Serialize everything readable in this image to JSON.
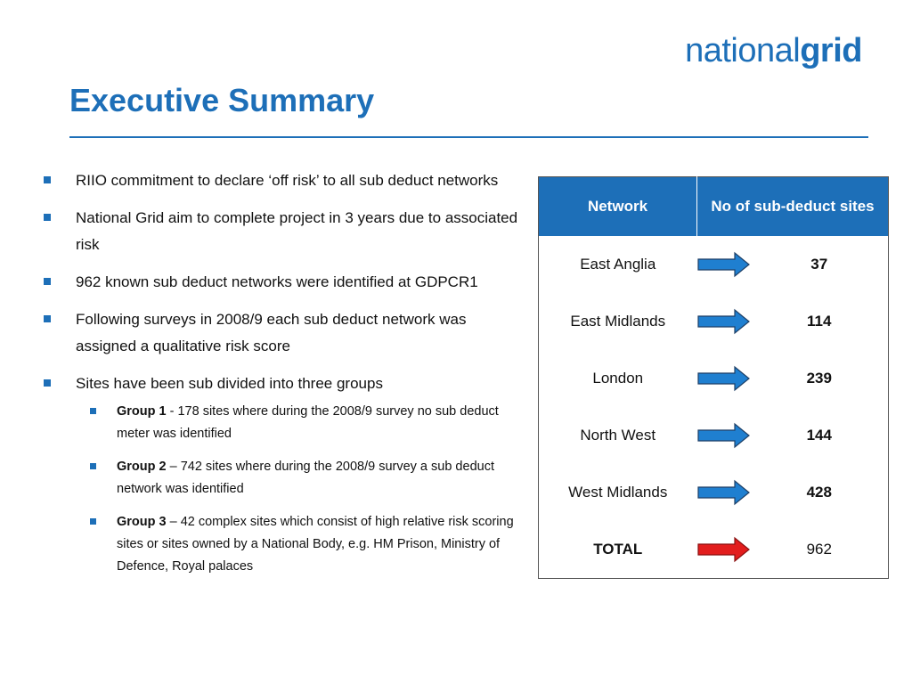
{
  "logo": {
    "light": "national",
    "bold": "grid"
  },
  "title": "Executive Summary",
  "bullets": [
    "RIIO commitment to declare ‘off risk’ to all sub deduct networks",
    "National Grid aim to complete project in 3 years due to associated risk",
    "962 known sub deduct networks were identified at GDPCR1",
    "Following surveys in 2008/9 each sub deduct network was assigned a qualitative risk score",
    "Sites have been sub divided into three groups"
  ],
  "groups": [
    {
      "label": "Group 1",
      "text": " - 178 sites where during the 2008/9 survey no sub deduct meter was identified"
    },
    {
      "label": "Group 2",
      "text": " – 742 sites where during the 2008/9 survey a sub deduct network was identified"
    },
    {
      "label": "Group 3",
      "text": " – 42 complex sites which consist of high relative risk scoring sites or sites owned by a National Body, e.g. HM Prison, Ministry of Defence, Royal palaces"
    }
  ],
  "table": {
    "headers": [
      "Network",
      "No of sub-deduct sites"
    ],
    "rows": [
      {
        "network": "East Anglia",
        "count": "37",
        "arrow": "blue"
      },
      {
        "network": "East Midlands",
        "count": "114",
        "arrow": "blue"
      },
      {
        "network": "London",
        "count": "239",
        "arrow": "blue"
      },
      {
        "network": "North West",
        "count": "144",
        "arrow": "blue"
      },
      {
        "network": "West Midlands",
        "count": "428",
        "arrow": "blue"
      },
      {
        "network": "TOTAL",
        "count": "962",
        "arrow": "red"
      }
    ]
  },
  "colors": {
    "accent": "#1d6fb8",
    "arrow_blue": "#1f7fd0",
    "arrow_red": "#e21d1d"
  }
}
